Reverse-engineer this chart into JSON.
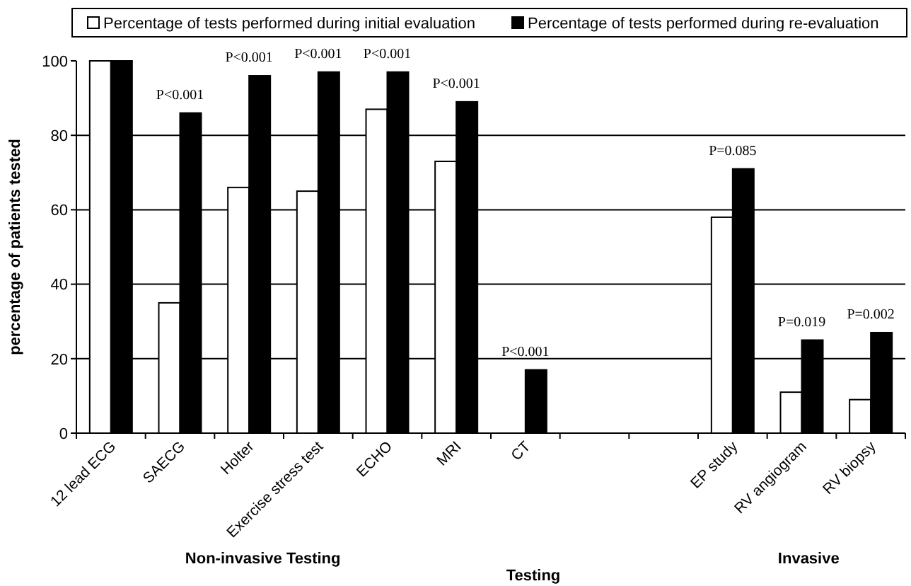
{
  "chart_data": {
    "type": "bar",
    "xlabel": "Testing",
    "ylabel": "percentage of patients tested",
    "categories": [
      "12 lead ECG",
      "SAECG",
      "Holter",
      "Exercise stress test",
      "ECHO",
      "MRI",
      "CT",
      null,
      null,
      "EP study",
      "RV angiogram",
      "RV biopsy"
    ],
    "series": [
      {
        "name": "Percentage of tests performed during initial evaluation",
        "color": "#ffffff",
        "values": [
          100,
          35,
          66,
          65,
          87,
          73,
          0,
          null,
          null,
          58,
          11,
          9
        ]
      },
      {
        "name": "Percentage of tests performed during re-evaluation",
        "color": "#000000",
        "values": [
          100,
          86,
          96,
          97,
          97,
          89,
          17,
          null,
          null,
          71,
          25,
          27
        ]
      }
    ],
    "ylim": [
      0,
      100
    ],
    "yticks": [
      0,
      20,
      40,
      60,
      80,
      100
    ],
    "grid": "y",
    "legend": "top",
    "annotations": [
      {
        "text": "P<0.001",
        "x": "SAECG",
        "y": 86
      },
      {
        "text": "P<0.001",
        "x": "Holter",
        "y": 96
      },
      {
        "text": "P<0.001",
        "x": "Exercise stress test",
        "y": 97
      },
      {
        "text": "P<0.001",
        "x": "ECHO",
        "y": 97
      },
      {
        "text": "P<0.001",
        "x": "MRI",
        "y": 89
      },
      {
        "text": "P<0.001",
        "x": "CT",
        "y": 17
      },
      {
        "text": "P=0.085",
        "x": "EP study",
        "y": 71
      },
      {
        "text": "P=0.019",
        "x": "RV angiogram",
        "y": 25
      },
      {
        "text": "P=0.002",
        "x": "RV biopsy",
        "y": 27
      },
      "Non-invasive Testing",
      "Invasive"
    ]
  }
}
